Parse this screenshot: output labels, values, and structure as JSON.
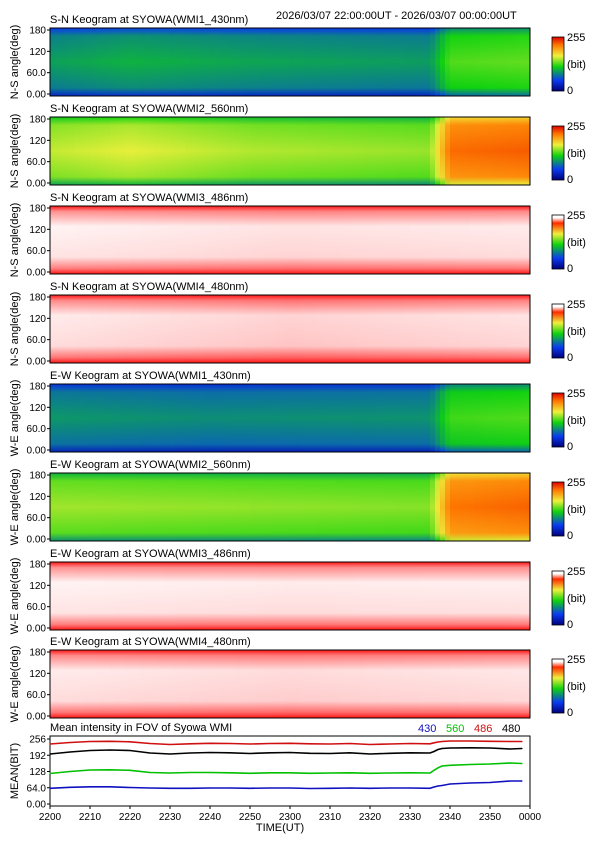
{
  "header": {
    "time_range": "2026/03/07 22:00:00UT - 2026/03/07 00:00:00UT"
  },
  "colorbar": {
    "max": "255",
    "unit": "(bit)",
    "min": "0"
  },
  "chart_data": [
    {
      "type": "heatmap",
      "title": "S-N Keogram at SYOWA(WMI1_430nm)",
      "ylabel": "N-S angle(deg)",
      "yticks": [
        "180",
        "120",
        "60.0",
        "0.00"
      ],
      "ylim": [
        0,
        180
      ],
      "colormap": "blue-green-yellow-red",
      "value_profile_0_to_255": {
        "minutes": [
          0,
          20,
          50,
          95,
          100,
          120
        ],
        "values": [
          88,
          95,
          90,
          86,
          124,
          128
        ]
      }
    },
    {
      "type": "heatmap",
      "title": "S-N Keogram at SYOWA(WMI2_560nm)",
      "ylabel": "N-S angle(deg)",
      "yticks": [
        "180",
        "120",
        "60.0",
        "0.00"
      ],
      "ylim": [
        0,
        180
      ],
      "colormap": "blue-green-yellow-red",
      "value_profile_0_to_255": {
        "minutes": [
          0,
          20,
          50,
          95,
          100,
          120
        ],
        "values": [
          150,
          158,
          146,
          140,
          215,
          220
        ]
      }
    },
    {
      "type": "heatmap",
      "title": "S-N Keogram at SYOWA(WMI3_486nm)",
      "ylabel": "N-S angle(deg)",
      "yticks": [
        "180",
        "120",
        "60.0",
        "0.00"
      ],
      "ylim": [
        0,
        180
      ],
      "colormap": "white-red",
      "value_profile_0_to_255": {
        "minutes": [
          0,
          60,
          120
        ],
        "values": [
          252,
          248,
          250
        ]
      }
    },
    {
      "type": "heatmap",
      "title": "S-N Keogram at SYOWA(WMI4_480nm)",
      "ylabel": "N-S angle(deg)",
      "yticks": [
        "180",
        "120",
        "60.0",
        "0.00"
      ],
      "ylim": [
        0,
        180
      ],
      "colormap": "white-red",
      "value_profile_0_to_255": {
        "minutes": [
          0,
          60,
          120
        ],
        "values": [
          250,
          244,
          248
        ]
      }
    },
    {
      "type": "heatmap",
      "title": "E-W Keogram at SYOWA(WMI1_430nm)",
      "ylabel": "W-E angle(deg)",
      "yticks": [
        "180",
        "120",
        "60.0",
        "0.00"
      ],
      "ylim": [
        0,
        180
      ],
      "colormap": "blue-green-yellow-red",
      "value_profile_0_to_255": {
        "minutes": [
          0,
          40,
          95,
          100,
          120
        ],
        "values": [
          84,
          80,
          82,
          120,
          124
        ]
      }
    },
    {
      "type": "heatmap",
      "title": "E-W Keogram at SYOWA(WMI2_560nm)",
      "ylabel": "W-E angle(deg)",
      "yticks": [
        "180",
        "120",
        "60.0",
        "0.00"
      ],
      "ylim": [
        0,
        180
      ],
      "colormap": "blue-green-yellow-red",
      "value_profile_0_to_255": {
        "minutes": [
          0,
          30,
          95,
          100,
          120
        ],
        "values": [
          142,
          140,
          136,
          212,
          218
        ]
      }
    },
    {
      "type": "heatmap",
      "title": "E-W Keogram at SYOWA(WMI3_486nm)",
      "ylabel": "W-E angle(deg)",
      "yticks": [
        "180",
        "120",
        "60.0",
        "0.00"
      ],
      "ylim": [
        0,
        180
      ],
      "colormap": "white-red",
      "value_profile_0_to_255": {
        "minutes": [
          0,
          60,
          120
        ],
        "values": [
          252,
          250,
          251
        ]
      }
    },
    {
      "type": "heatmap",
      "title": "E-W Keogram at SYOWA(WMI4_480nm)",
      "ylabel": "W-E angle(deg)",
      "yticks": [
        "180",
        "120",
        "60.0",
        "0.00"
      ],
      "ylim": [
        0,
        180
      ],
      "colormap": "white-red",
      "value_profile_0_to_255": {
        "minutes": [
          0,
          60,
          120
        ],
        "values": [
          250,
          246,
          249
        ]
      }
    },
    {
      "type": "line",
      "title": "Mean intensity in FOV of Syowa WMI",
      "ylabel": "MEAN(BIT)",
      "xlabel": "TIME(UT)",
      "yticks": [
        "256",
        "192",
        "128",
        "64.0",
        "0.00"
      ],
      "ylim": [
        0,
        256
      ],
      "xlim_minutes": [
        0,
        120
      ],
      "x_ticks": [
        "2200",
        "2210",
        "2220",
        "2230",
        "2240",
        "2250",
        "2300",
        "2310",
        "2320",
        "2330",
        "2340",
        "2350",
        "0000"
      ],
      "x_minutes": [
        0,
        5,
        10,
        15,
        20,
        25,
        30,
        35,
        40,
        45,
        50,
        55,
        60,
        65,
        70,
        75,
        80,
        85,
        90,
        95,
        96,
        97,
        98,
        100,
        105,
        110,
        115,
        118
      ],
      "series": [
        {
          "name": "430",
          "color": "#1010c0",
          "values": [
            63,
            67,
            69,
            69,
            66,
            64,
            63,
            63,
            64,
            64,
            63,
            64,
            64,
            62,
            63,
            64,
            63,
            64,
            64,
            63,
            68,
            72,
            74,
            80,
            84,
            86,
            92,
            92
          ]
        },
        {
          "name": "560",
          "color": "#00c000",
          "values": [
            122,
            130,
            136,
            137,
            135,
            126,
            124,
            126,
            126,
            125,
            123,
            125,
            125,
            123,
            124,
            125,
            123,
            124,
            125,
            124,
            135,
            145,
            152,
            155,
            158,
            160,
            164,
            162
          ]
        },
        {
          "name": "486",
          "color": "#d01010",
          "values": [
            240,
            246,
            250,
            251,
            249,
            242,
            238,
            241,
            243,
            242,
            240,
            242,
            243,
            241,
            240,
            242,
            238,
            240,
            242,
            241,
            245,
            248,
            250,
            252,
            252,
            251,
            250,
            250
          ]
        },
        {
          "name": "480",
          "color": "#000000",
          "values": [
            200,
            208,
            214,
            216,
            214,
            204,
            200,
            204,
            206,
            205,
            202,
            205,
            206,
            203,
            202,
            205,
            200,
            203,
            205,
            204,
            210,
            218,
            222,
            224,
            225,
            224,
            220,
            222
          ]
        }
      ]
    }
  ]
}
